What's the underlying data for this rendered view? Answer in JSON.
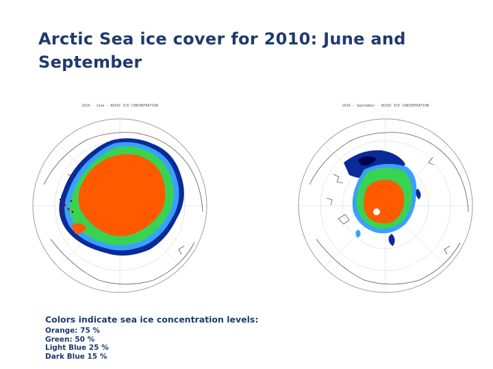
{
  "slide": {
    "title": "Arctic Sea ice cover for 2010: June and September"
  },
  "maps": {
    "june": {
      "caption": "2010 - June - NSIDC ICE CONCENTRATION",
      "colors": {
        "orange": "#ff5a00",
        "green": "#39d352",
        "light_blue": "#3aa0ff",
        "dark_blue": "#0a2a9a"
      }
    },
    "september": {
      "caption": "2010 - September - NSIDC ICE CONCENTRATION",
      "colors": {
        "orange": "#ff5a00",
        "green": "#39d352",
        "light_blue": "#3aa0ff",
        "dark_blue": "#0a2a9a"
      }
    }
  },
  "legend": {
    "title": "Colors indicate sea ice concentration levels:",
    "lines": [
      "Orange: 75 %",
      "Green: 50 %",
      "Light Blue 25 %",
      "Dark Blue 15 %"
    ]
  }
}
